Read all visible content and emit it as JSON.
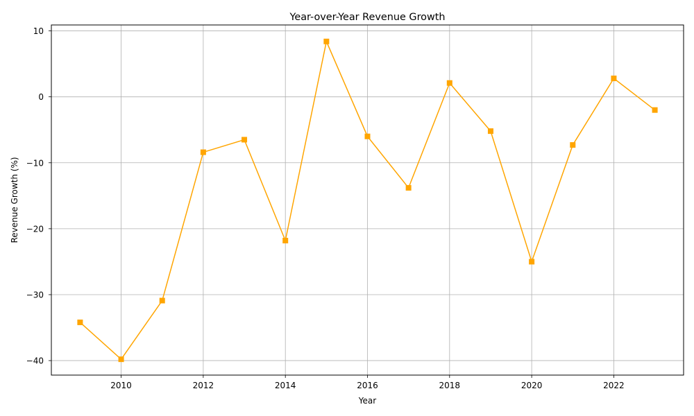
{
  "chart_data": {
    "type": "line",
    "title": "Year-over-Year Revenue Growth",
    "xlabel": "Year",
    "ylabel": "Revenue Growth (%)",
    "x": [
      2009,
      2010,
      2011,
      2012,
      2013,
      2014,
      2015,
      2016,
      2017,
      2018,
      2019,
      2020,
      2021,
      2022,
      2023
    ],
    "series": [
      {
        "values": [
          -34.2,
          -39.8,
          -30.9,
          -8.4,
          -6.5,
          -21.8,
          8.4,
          -6.0,
          -13.8,
          2.1,
          -5.2,
          -25.0,
          -7.3,
          2.8,
          -2.0
        ]
      }
    ],
    "xlim": [
      2008.3,
      2023.7
    ],
    "ylim": [
      -42.2,
      10.9
    ],
    "xticks": [
      "2010",
      "2012",
      "2014",
      "2016",
      "2018",
      "2020",
      "2022"
    ],
    "yticks": [
      "10",
      "0",
      "−10",
      "−20",
      "−30",
      "−40"
    ],
    "grid": true,
    "line_color": "#FFA500",
    "marker": "square"
  }
}
